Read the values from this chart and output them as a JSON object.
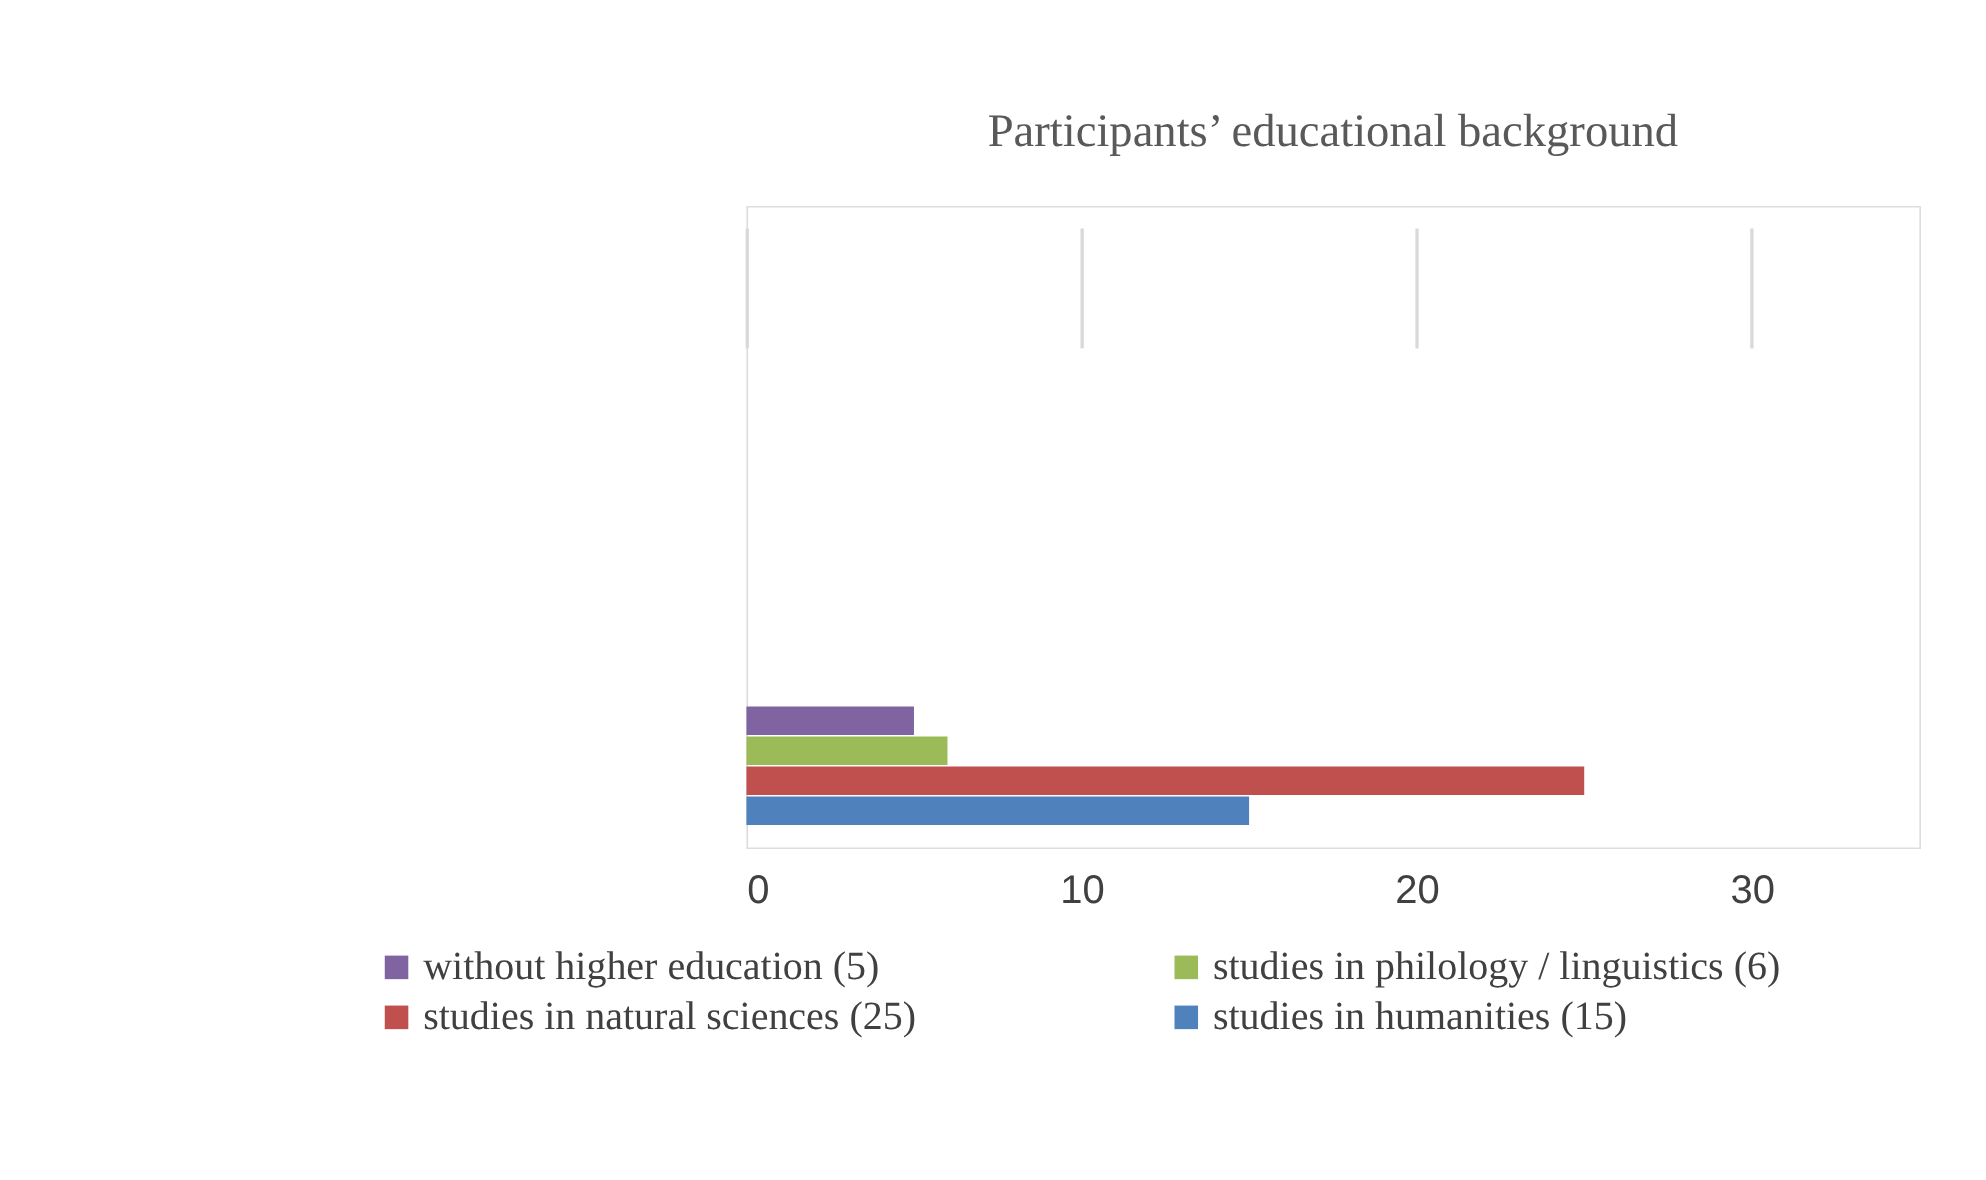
{
  "chart_data": {
    "type": "bar",
    "orientation": "horizontal",
    "title": "Participants’ educational background",
    "categories": [
      null
    ],
    "series": [
      {
        "name": "without higher education (5)",
        "color": "#8064a2",
        "values": [
          5
        ]
      },
      {
        "name": "studies in philology / linguistics (6)",
        "color": "#9bbb59",
        "values": [
          6
        ]
      },
      {
        "name": "studies in natural sciences (25)",
        "color": "#c0504d",
        "values": [
          25
        ]
      },
      {
        "name": "studies in humanities (15)",
        "color": "#4f81bd",
        "values": [
          15
        ]
      }
    ],
    "xlim": [
      0,
      35
    ],
    "xticks": [
      0,
      10,
      20,
      30
    ],
    "grid": "x",
    "legend": "bottom",
    "tick_labels": "x"
  }
}
